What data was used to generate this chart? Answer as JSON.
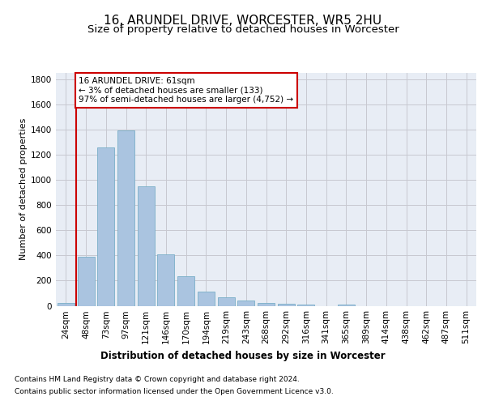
{
  "title1": "16, ARUNDEL DRIVE, WORCESTER, WR5 2HU",
  "title2": "Size of property relative to detached houses in Worcester",
  "xlabel": "Distribution of detached houses by size in Worcester",
  "ylabel": "Number of detached properties",
  "categories": [
    "24sqm",
    "48sqm",
    "73sqm",
    "97sqm",
    "121sqm",
    "146sqm",
    "170sqm",
    "194sqm",
    "219sqm",
    "243sqm",
    "268sqm",
    "292sqm",
    "316sqm",
    "341sqm",
    "365sqm",
    "389sqm",
    "414sqm",
    "438sqm",
    "462sqm",
    "487sqm",
    "511sqm"
  ],
  "values": [
    25,
    390,
    1260,
    1390,
    950,
    410,
    232,
    115,
    65,
    40,
    20,
    15,
    8,
    0,
    12,
    0,
    0,
    0,
    0,
    0,
    0
  ],
  "bar_color": "#aac4e0",
  "bar_edge_color": "#7aafc8",
  "vline_x_index": 1,
  "annotation_text": "16 ARUNDEL DRIVE: 61sqm\n← 3% of detached houses are smaller (133)\n97% of semi-detached houses are larger (4,752) →",
  "annotation_box_color": "#ffffff",
  "annotation_box_edge": "#cc0000",
  "vline_color": "#cc0000",
  "ylim": [
    0,
    1850
  ],
  "yticks": [
    0,
    200,
    400,
    600,
    800,
    1000,
    1200,
    1400,
    1600,
    1800
  ],
  "grid_color": "#c8c8d0",
  "bg_color": "#e8edf5",
  "footer_line1": "Contains HM Land Registry data © Crown copyright and database right 2024.",
  "footer_line2": "Contains public sector information licensed under the Open Government Licence v3.0.",
  "title1_fontsize": 11,
  "title2_fontsize": 9.5,
  "tick_fontsize": 7.5,
  "ylabel_fontsize": 8,
  "xlabel_fontsize": 8.5,
  "annotation_fontsize": 7.5,
  "footer_fontsize": 6.5
}
